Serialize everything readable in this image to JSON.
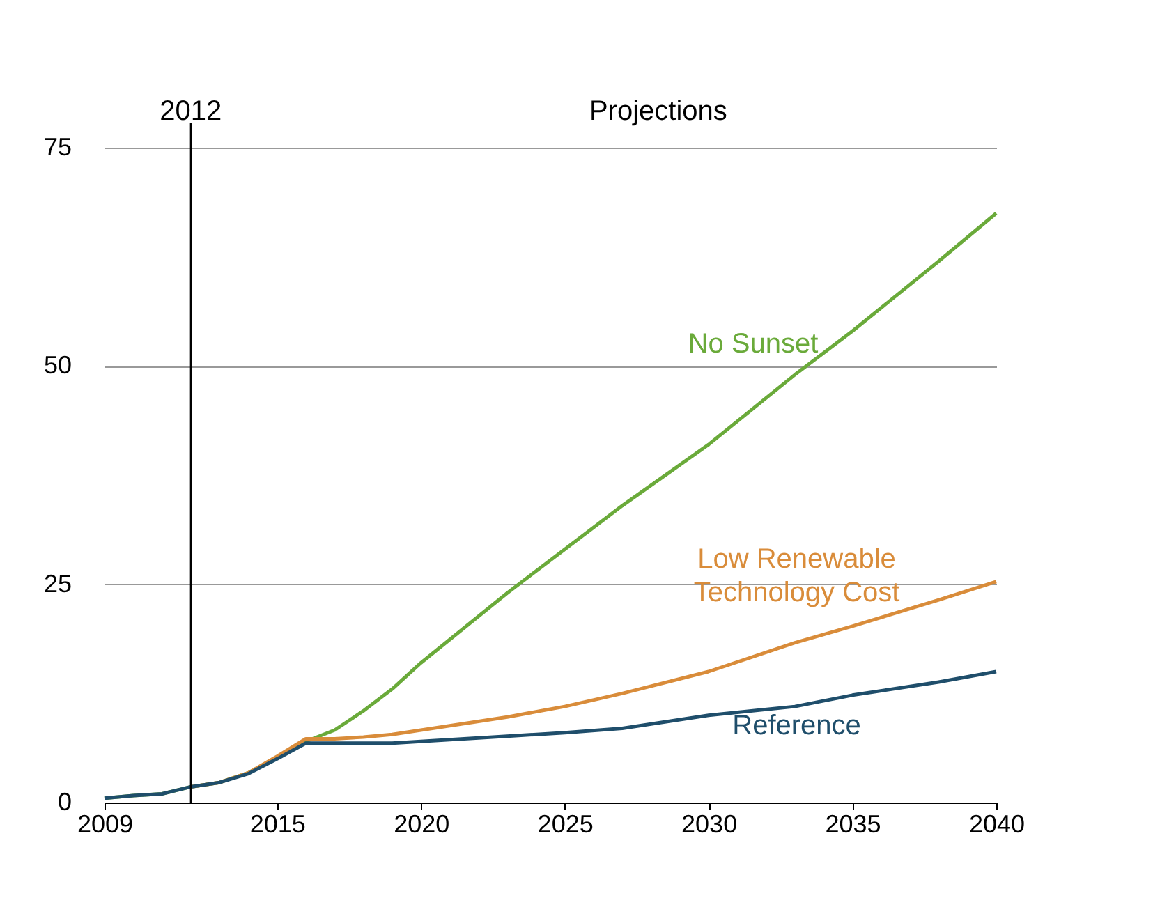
{
  "chart_data": {
    "type": "line",
    "x": [
      2009,
      2010,
      2011,
      2012,
      2013,
      2014,
      2015,
      2016,
      2017,
      2018,
      2019,
      2020,
      2023,
      2025,
      2027,
      2030,
      2033,
      2035,
      2038,
      2040
    ],
    "series": [
      {
        "name": "No Sunset",
        "color": "#6aaa3a",
        "values": [
          0.5,
          0.8,
          1,
          1.8,
          2.3,
          3.4,
          5.2,
          7,
          8.3,
          10.5,
          13,
          16,
          24,
          29,
          34,
          41,
          49,
          54,
          62,
          67.5
        ]
      },
      {
        "name": "Low Renewable Technology Cost",
        "color": "#d98c3a",
        "values": [
          null,
          null,
          null,
          1.8,
          2.3,
          3.4,
          5.3,
          7.3,
          7.3,
          7.5,
          7.8,
          8.3,
          9.8,
          11,
          12.5,
          15,
          18.3,
          20.2,
          23.2,
          25.3
        ]
      },
      {
        "name": "Reference",
        "color": "#1f4e6b",
        "values": [
          0.5,
          0.8,
          1,
          1.8,
          2.3,
          3.3,
          5,
          6.8,
          6.8,
          6.8,
          6.8,
          7,
          7.6,
          8,
          8.5,
          10,
          11,
          12.3,
          13.8,
          15
        ]
      }
    ],
    "xlim": [
      2009,
      2040
    ],
    "xticks": [
      2009,
      2015,
      2020,
      2025,
      2030,
      2035,
      2040
    ],
    "ylim": [
      0,
      75
    ],
    "yticks": [
      0,
      25,
      50,
      75
    ],
    "grid": "y",
    "ref_lines": [
      {
        "axis": "x",
        "value": 2012,
        "label": "2012"
      }
    ],
    "annotations": [
      "Projections"
    ]
  }
}
